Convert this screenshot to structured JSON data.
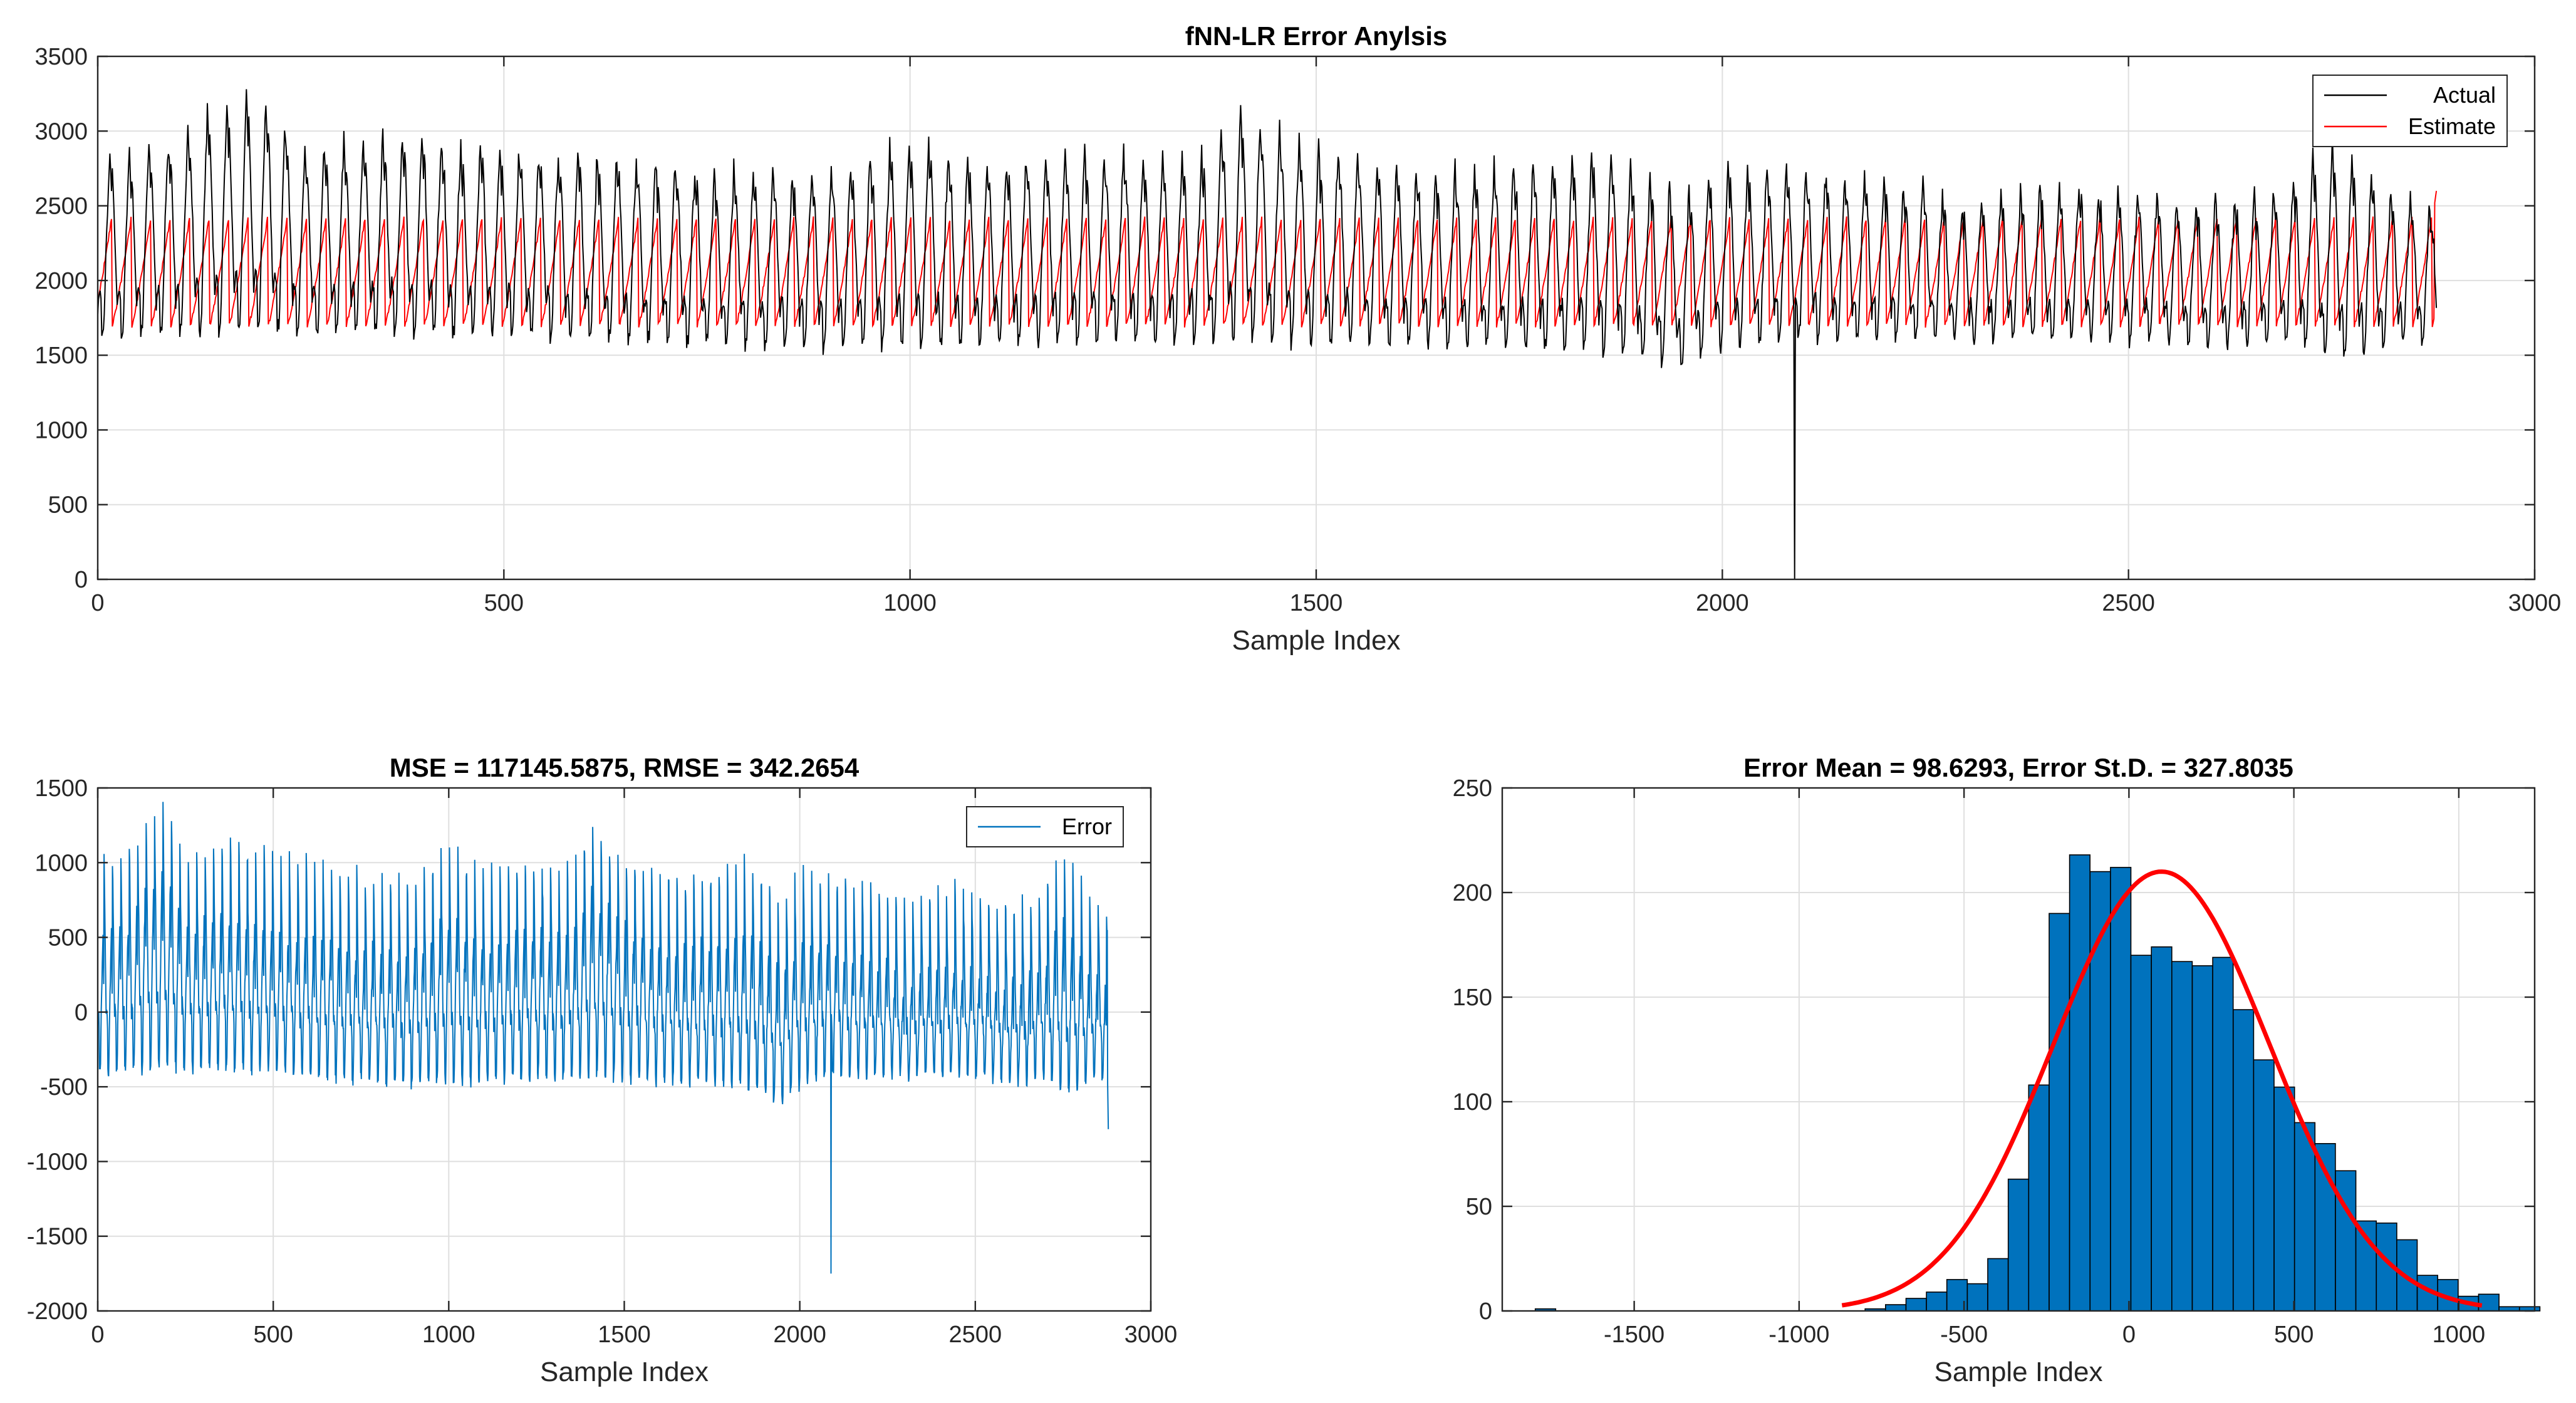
{
  "chart_data": [
    {
      "id": "top",
      "type": "line",
      "title": "fNN-LR Error Anylsis",
      "xlabel": "Sample Index",
      "ylabel": "",
      "xlim": [
        0,
        3000
      ],
      "ylim": [
        0,
        3500
      ],
      "xticks": [
        0,
        500,
        1000,
        1500,
        2000,
        2500,
        3000
      ],
      "yticks": [
        0,
        500,
        1000,
        1500,
        2000,
        2500,
        3000,
        3500
      ],
      "grid": true,
      "legend": "top-right",
      "n_samples": 2880,
      "period": 24,
      "series": [
        {
          "name": "Actual",
          "color": "#000000",
          "description": "Periodic daily-cycle signal sampled at 2880 points",
          "peak_level": [
            [
              0,
              2850
            ],
            [
              100,
              2950
            ],
            [
              150,
              3200
            ],
            [
              200,
              3300
            ],
            [
              250,
              2900
            ],
            [
              350,
              3000
            ],
            [
              500,
              2900
            ],
            [
              650,
              2850
            ],
            [
              750,
              2750
            ],
            [
              900,
              2750
            ],
            [
              1000,
              2950
            ],
            [
              1100,
              2800
            ],
            [
              1150,
              2850
            ],
            [
              1250,
              2900
            ],
            [
              1350,
              2800
            ],
            [
              1400,
              3150
            ],
            [
              1500,
              2900
            ],
            [
              1600,
              2800
            ],
            [
              1700,
              2750
            ],
            [
              1800,
              2800
            ],
            [
              1850,
              2900
            ],
            [
              1950,
              2600
            ],
            [
              2000,
              2800
            ],
            [
              2100,
              2750
            ],
            [
              2200,
              2700
            ],
            [
              2300,
              2550
            ],
            [
              2450,
              2650
            ],
            [
              2550,
              2550
            ],
            [
              2650,
              2550
            ],
            [
              2700,
              2700
            ],
            [
              2750,
              2950
            ],
            [
              2800,
              2700
            ],
            [
              2880,
              2500
            ]
          ],
          "trough_level": [
            [
              0,
              1620
            ],
            [
              200,
              1660
            ],
            [
              500,
              1640
            ],
            [
              800,
              1560
            ],
            [
              1000,
              1560
            ],
            [
              1200,
              1580
            ],
            [
              1400,
              1600
            ],
            [
              1600,
              1560
            ],
            [
              1800,
              1540
            ],
            [
              1900,
              1480
            ],
            [
              1950,
              1400
            ],
            [
              2000,
              1550
            ],
            [
              2100,
              1600
            ],
            [
              2300,
              1600
            ],
            [
              2500,
              1600
            ],
            [
              2650,
              1560
            ],
            [
              2700,
              1600
            ],
            [
              2750,
              1460
            ],
            [
              2800,
              1520
            ],
            [
              2880,
              1620
            ]
          ],
          "outlier": {
            "x": 2089,
            "y": 0
          }
        },
        {
          "name": "Estimate",
          "color": "#ff0000",
          "description": "Sawtooth estimate ramping each period",
          "low": 1700,
          "high": 2450,
          "end_value": 2600
        }
      ]
    },
    {
      "id": "bottom-left",
      "type": "line",
      "title": "MSE = 117145.5875, RMSE = 342.2654",
      "xlabel": "Sample Index",
      "ylabel": "",
      "xlim": [
        0,
        3000
      ],
      "ylim": [
        -2000,
        1500
      ],
      "xticks": [
        0,
        500,
        1000,
        1500,
        2000,
        2500,
        3000
      ],
      "yticks": [
        -2000,
        -1500,
        -1000,
        -500,
        0,
        500,
        1000,
        1500
      ],
      "grid": true,
      "legend": "top-right",
      "series": [
        {
          "name": "Error",
          "color": "#0072bd",
          "description": "Actual minus Estimate",
          "outlier": {
            "x": 2089,
            "y": -1750
          }
        }
      ]
    },
    {
      "id": "bottom-right",
      "type": "bar",
      "title": "Error Mean = 98.6293, Error St.D. = 327.8035",
      "xlabel": "Sample Index",
      "ylabel": "",
      "xlim": [
        -1900,
        1230
      ],
      "ylim": [
        0,
        250
      ],
      "xticks": [
        -1500,
        -1000,
        -500,
        0,
        500,
        1000
      ],
      "yticks": [
        0,
        50,
        100,
        150,
        200,
        250
      ],
      "grid": true,
      "bin_width": 62,
      "bins": [
        {
          "x0": -1800,
          "count": 1
        },
        {
          "x0": -800,
          "count": 1
        },
        {
          "x0": -738,
          "count": 3
        },
        {
          "x0": -676,
          "count": 6
        },
        {
          "x0": -614,
          "count": 9
        },
        {
          "x0": -552,
          "count": 15
        },
        {
          "x0": -490,
          "count": 13
        },
        {
          "x0": -428,
          "count": 25
        },
        {
          "x0": -366,
          "count": 63
        },
        {
          "x0": -304,
          "count": 108
        },
        {
          "x0": -242,
          "count": 190
        },
        {
          "x0": -180,
          "count": 218
        },
        {
          "x0": -118,
          "count": 210
        },
        {
          "x0": -56,
          "count": 212
        },
        {
          "x0": 6,
          "count": 170
        },
        {
          "x0": 68,
          "count": 174
        },
        {
          "x0": 130,
          "count": 167
        },
        {
          "x0": 192,
          "count": 165
        },
        {
          "x0": 254,
          "count": 169
        },
        {
          "x0": 316,
          "count": 144
        },
        {
          "x0": 378,
          "count": 120
        },
        {
          "x0": 440,
          "count": 107
        },
        {
          "x0": 502,
          "count": 90
        },
        {
          "x0": 564,
          "count": 80
        },
        {
          "x0": 626,
          "count": 67
        },
        {
          "x0": 688,
          "count": 43
        },
        {
          "x0": 750,
          "count": 42
        },
        {
          "x0": 812,
          "count": 34
        },
        {
          "x0": 874,
          "count": 17
        },
        {
          "x0": 936,
          "count": 15
        },
        {
          "x0": 998,
          "count": 7
        },
        {
          "x0": 1060,
          "count": 8
        },
        {
          "x0": 1122,
          "count": 2
        },
        {
          "x0": 1184,
          "count": 2
        }
      ],
      "bar_color": "#0072bd",
      "fit": {
        "type": "normal",
        "mean": 98.6293,
        "std": 327.8035,
        "peak": 210,
        "x_range": [
          -870,
          1070
        ],
        "color": "#ff0000"
      }
    }
  ]
}
